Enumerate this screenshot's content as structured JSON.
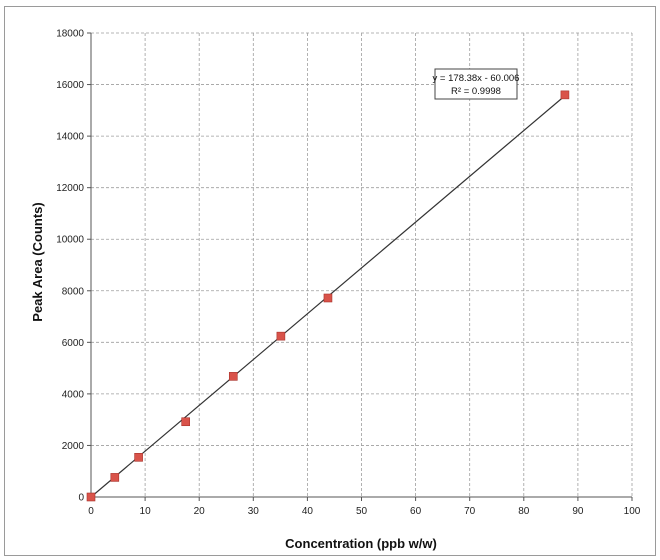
{
  "chart_data": {
    "type": "scatter",
    "title": "",
    "xlabel": "Concentration (ppb w/w)",
    "ylabel": "Peak Area (Counts)",
    "xlim": [
      0,
      100
    ],
    "ylim": [
      0,
      18000
    ],
    "x_ticks": [
      "0",
      "10",
      "20",
      "30",
      "40",
      "50",
      "60",
      "70",
      "80",
      "90",
      "100"
    ],
    "y_ticks": [
      "0",
      "2000",
      "4000",
      "6000",
      "8000",
      "10000",
      "12000",
      "14000",
      "16000",
      "18000"
    ],
    "grid": true,
    "grid_style": "dashed",
    "marker_color": "#d9534a",
    "line_color": "#333333",
    "series": [
      {
        "x": [
          0,
          4.4,
          8.8,
          17.5,
          26.3,
          35.1,
          43.8,
          87.6
        ],
        "y": [
          0,
          760,
          1540,
          2920,
          4680,
          6240,
          7720,
          15600
        ]
      }
    ],
    "trendline": {
      "slope": 178.38,
      "intercept": -60.006,
      "equation": "y = 178.38x - 60.006",
      "r2_label": "R² = 0.9998"
    }
  }
}
